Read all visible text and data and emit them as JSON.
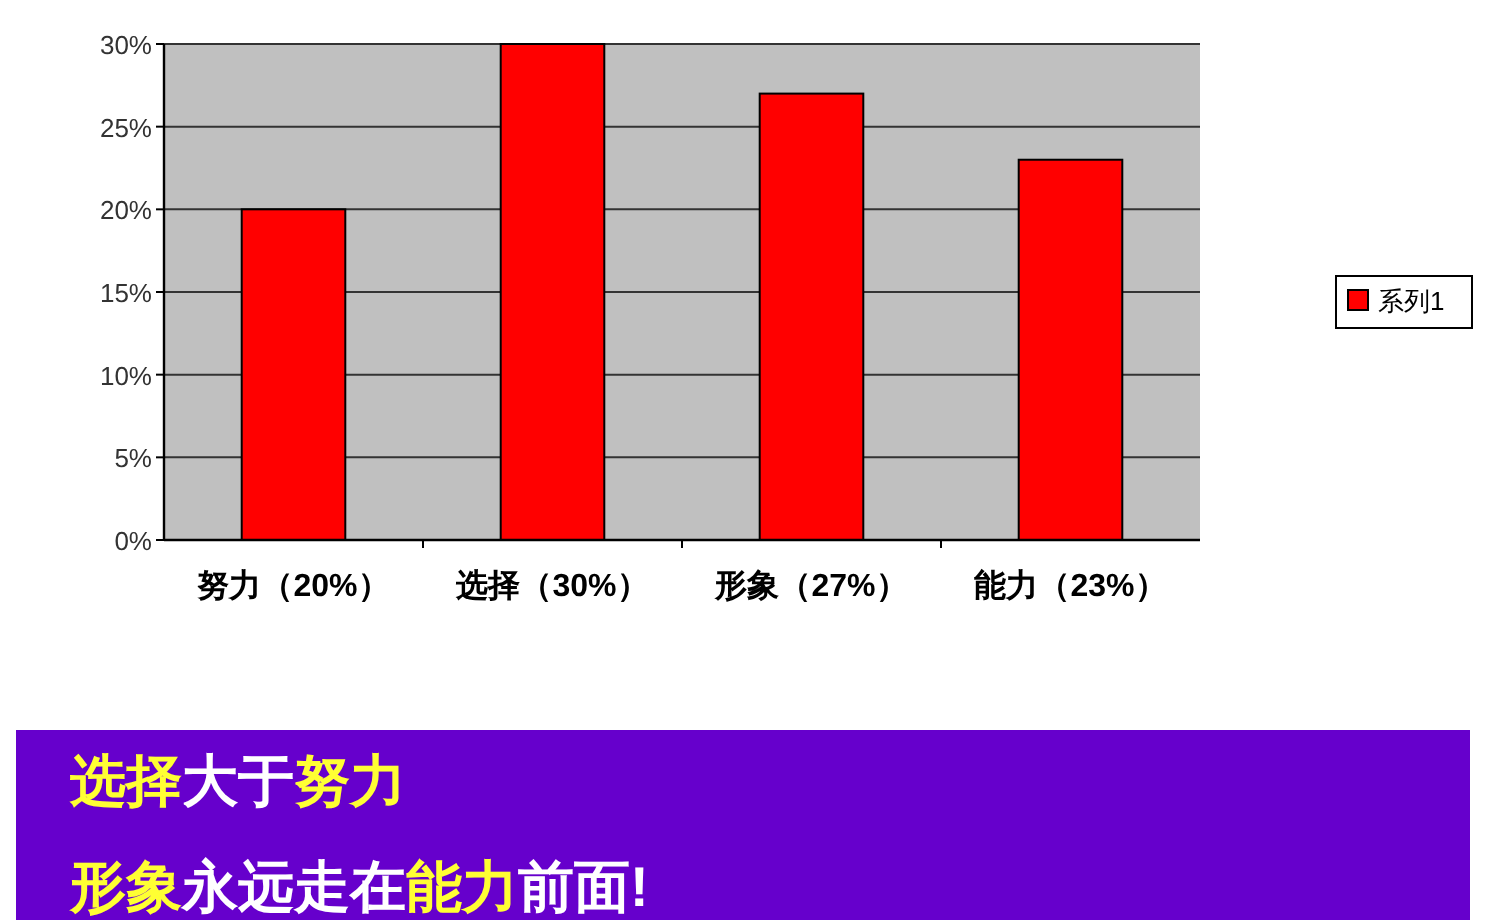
{
  "chart_data": {
    "type": "bar",
    "categories": [
      "努力（20%）",
      "选择（30%）",
      "形象（27%）",
      "能力（23%）"
    ],
    "series": [
      {
        "name": "系列1",
        "color": "#ff0000",
        "values": [
          20,
          30,
          27,
          23
        ]
      }
    ],
    "ylim": [
      0,
      30
    ],
    "yticks": [
      {
        "value": 0,
        "label": "0%"
      },
      {
        "value": 5,
        "label": "5%"
      },
      {
        "value": 10,
        "label": "10%"
      },
      {
        "value": 15,
        "label": "15%"
      },
      {
        "value": 20,
        "label": "20%"
      },
      {
        "value": 25,
        "label": "25%"
      },
      {
        "value": 30,
        "label": "30%"
      }
    ],
    "grid": "y",
    "legend": "right",
    "annotations": [
      "**选择**大于**努力**",
      "**形象**永远走在**能力**前面!"
    ]
  }
}
